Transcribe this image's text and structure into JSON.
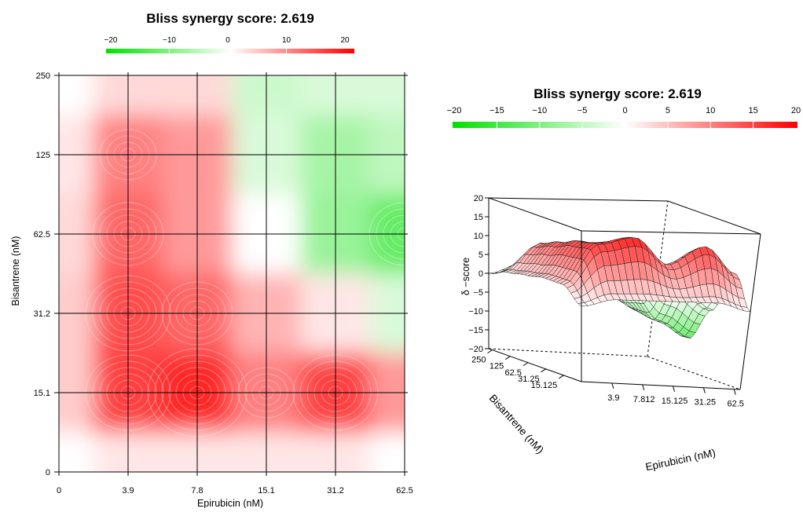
{
  "chart_data": [
    {
      "type": "heatmap",
      "title": "Bliss synergy score: 2.619",
      "xlabel": "Epirubicin (nM)",
      "ylabel": "Bisantrene (nM)",
      "x_ticks": [
        "0",
        "3.9",
        "7.8",
        "15.1",
        "31.2",
        "62.5"
      ],
      "y_ticks": [
        "0",
        "15.1",
        "31.2",
        "62.5",
        "125",
        "250"
      ],
      "colorbar": {
        "ticks": [
          "−20",
          "−10",
          "0",
          "10",
          "20"
        ],
        "range": [
          -20,
          20
        ],
        "low_color": "#00e000",
        "mid_color": "#ffffff",
        "high_color": "#ff0000"
      },
      "values": [
        [
          0,
          2,
          2,
          2,
          2,
          0
        ],
        [
          4,
          15,
          17,
          10,
          15,
          8
        ],
        [
          4,
          14,
          12,
          6,
          2,
          -3
        ],
        [
          3,
          12,
          8,
          0,
          -8,
          -12
        ],
        [
          2,
          10,
          8,
          -3,
          -7,
          -5
        ],
        [
          0,
          3,
          3,
          -4,
          -3,
          -3
        ]
      ],
      "grid": true
    },
    {
      "type": "surface",
      "title": "Bliss synergy score: 2.619",
      "xlabel": "Epirubicin (nM)",
      "ylabel": "Bisantrene (nM)",
      "zlabel": "δ −score",
      "x_ticks": [
        "3.9",
        "7.812",
        "15.125",
        "31.25",
        "62.5"
      ],
      "y_ticks": [
        "15.125",
        "31.25",
        "62.5",
        "125",
        "250"
      ],
      "z_ticks": [
        "20",
        "15",
        "10",
        "5",
        "0",
        "−5",
        "−10",
        "−15",
        "−20"
      ],
      "zlim": [
        -20,
        20
      ],
      "colorbar": {
        "ticks": [
          "−20",
          "−15",
          "−10",
          "−5",
          "0",
          "5",
          "10",
          "15",
          "20"
        ],
        "range": [
          -20,
          20
        ],
        "low_color": "#00e000",
        "mid_color": "#ffffff",
        "high_color": "#ff0000"
      }
    }
  ]
}
